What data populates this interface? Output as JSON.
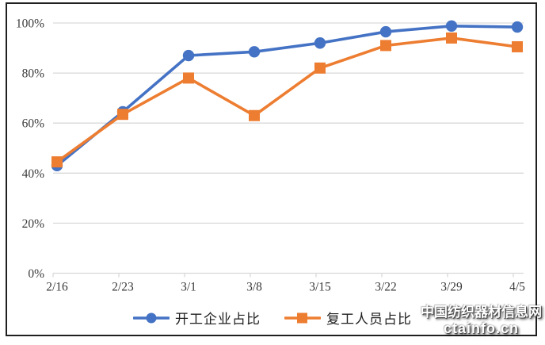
{
  "chart_data": {
    "type": "line",
    "categories": [
      "2/16",
      "2/23",
      "3/1",
      "3/8",
      "3/15",
      "3/22",
      "3/29",
      "4/5"
    ],
    "series": [
      {
        "name": "开工企业占比",
        "marker": "circle",
        "color": "#4472C4",
        "values": [
          43,
          64.5,
          87,
          88.5,
          92,
          96.5,
          98.8,
          98.4
        ]
      },
      {
        "name": "复工人员占比",
        "marker": "square",
        "color": "#ED7D31",
        "values": [
          44.5,
          63.5,
          78,
          63,
          82,
          91,
          94,
          90.5
        ]
      }
    ],
    "title": "",
    "xlabel": "",
    "ylabel": "",
    "y_axis": {
      "min": 0,
      "max": 100,
      "ticks": [
        0,
        20,
        40,
        60,
        80,
        100
      ],
      "tick_labels": [
        "0%",
        "20%",
        "40%",
        "60%",
        "80%",
        "100%"
      ]
    },
    "grid": true,
    "legend_position": "bottom",
    "gridline_color": "#D9D9D9",
    "axis_label_color": "#3a3a3a"
  },
  "watermark": {
    "line1": "中国纺织器材信息网",
    "line2": "ctainfo.cn",
    "text_color": "#FFFFFF",
    "shadow_color": "#3a3a3a"
  },
  "frame": {
    "border_color": "#1f1f1f",
    "background": "#FFFFFF"
  }
}
